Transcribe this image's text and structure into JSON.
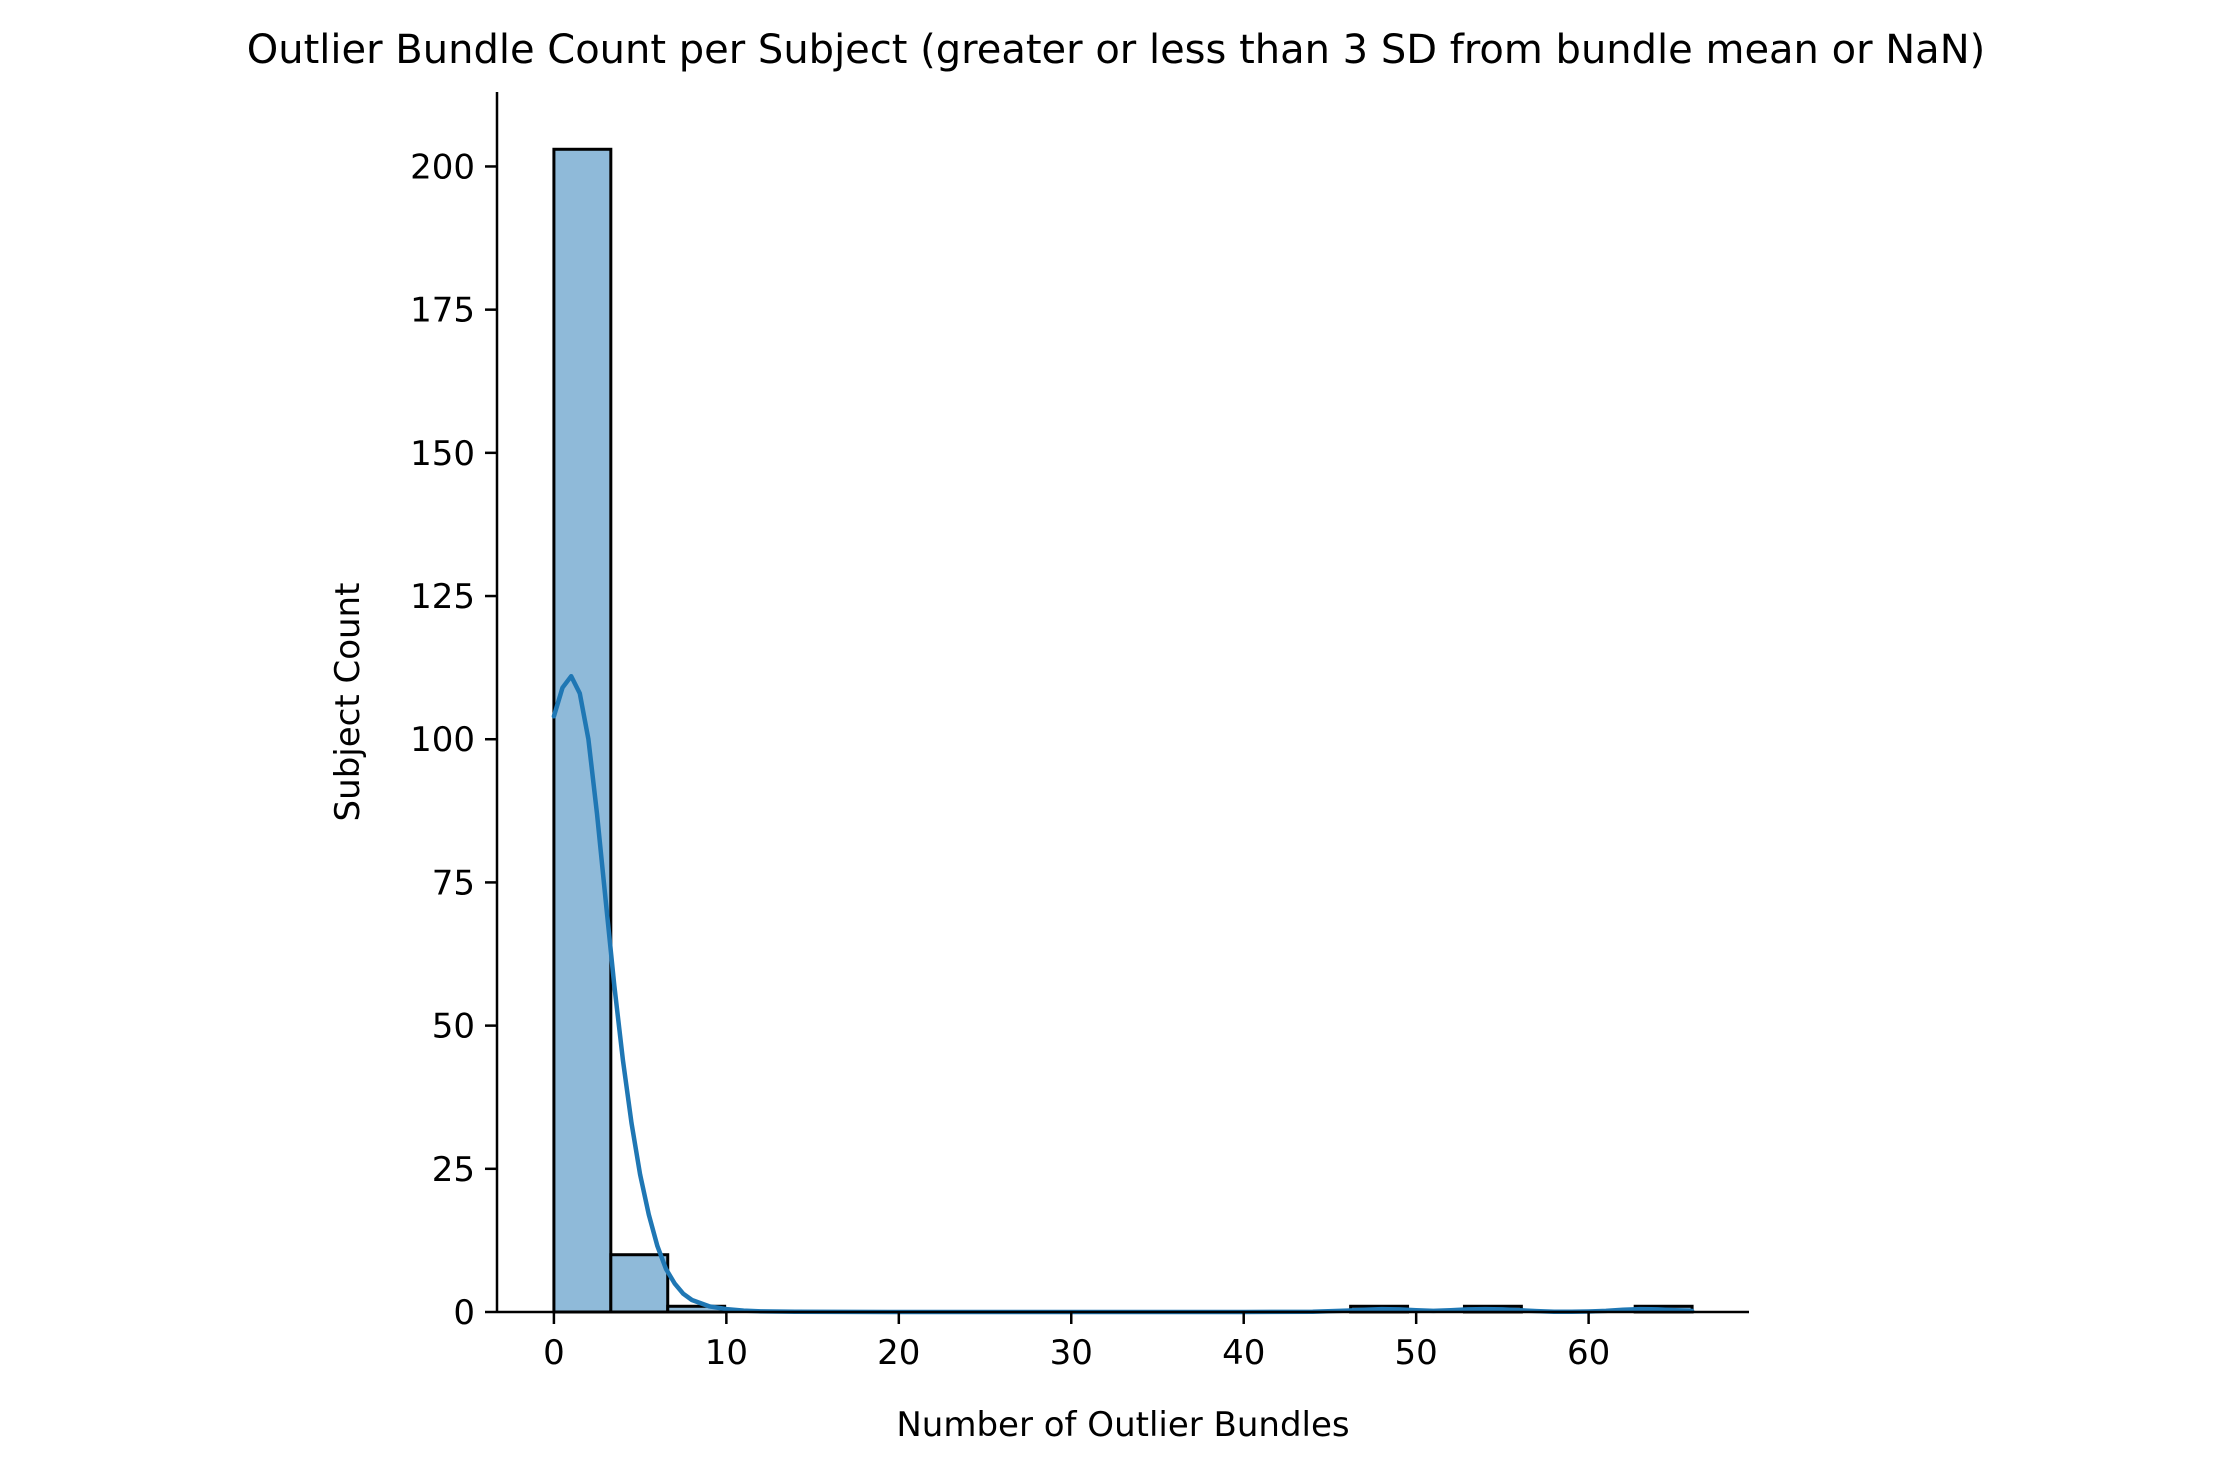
{
  "chart_data": {
    "type": "bar",
    "title": "Outlier Bundle Count per Subject (greater or less than 3 SD from bundle mean or NaN)",
    "xlabel": "Number of Outlier Bundles",
    "ylabel": "Subject Count",
    "xlim": [
      -3.3,
      69.3
    ],
    "ylim": [
      0,
      213
    ],
    "xticks": [
      0,
      10,
      20,
      30,
      40,
      50,
      60
    ],
    "xtick_labels": [
      "0",
      "10",
      "20",
      "30",
      "40",
      "50",
      "60"
    ],
    "yticks": [
      0,
      25,
      50,
      75,
      100,
      125,
      150,
      175,
      200
    ],
    "ytick_labels": [
      "0",
      "25",
      "50",
      "75",
      "100",
      "125",
      "150",
      "175",
      "200"
    ],
    "bins": [
      {
        "x0": 0.0,
        "x1": 3.3,
        "count": 203
      },
      {
        "x0": 3.3,
        "x1": 6.6,
        "count": 10
      },
      {
        "x0": 6.6,
        "x1": 9.9,
        "count": 1
      },
      {
        "x0": 9.9,
        "x1": 13.2,
        "count": 0
      },
      {
        "x0": 13.2,
        "x1": 16.5,
        "count": 0
      },
      {
        "x0": 16.5,
        "x1": 19.8,
        "count": 0
      },
      {
        "x0": 19.8,
        "x1": 23.1,
        "count": 0
      },
      {
        "x0": 23.1,
        "x1": 26.4,
        "count": 0
      },
      {
        "x0": 26.4,
        "x1": 29.7,
        "count": 0
      },
      {
        "x0": 29.7,
        "x1": 33.0,
        "count": 0
      },
      {
        "x0": 33.0,
        "x1": 36.3,
        "count": 0
      },
      {
        "x0": 36.3,
        "x1": 39.6,
        "count": 0
      },
      {
        "x0": 39.6,
        "x1": 42.9,
        "count": 0
      },
      {
        "x0": 42.9,
        "x1": 46.2,
        "count": 0
      },
      {
        "x0": 46.2,
        "x1": 49.5,
        "count": 1
      },
      {
        "x0": 49.5,
        "x1": 52.8,
        "count": 0
      },
      {
        "x0": 52.8,
        "x1": 56.1,
        "count": 1
      },
      {
        "x0": 56.1,
        "x1": 59.4,
        "count": 0
      },
      {
        "x0": 59.4,
        "x1": 62.7,
        "count": 0
      },
      {
        "x0": 62.7,
        "x1": 66.0,
        "count": 1
      }
    ],
    "kde": {
      "x": [
        0,
        0.5,
        1,
        1.5,
        2,
        2.5,
        3,
        3.5,
        4,
        4.5,
        5,
        5.5,
        6,
        6.5,
        7,
        7.5,
        8,
        9,
        10,
        11,
        12,
        14,
        20,
        30,
        40,
        44,
        46,
        47,
        48,
        49,
        50,
        51,
        52,
        53,
        54,
        55,
        56,
        57,
        58,
        59,
        60,
        61,
        62,
        63,
        64,
        65,
        66
      ],
      "y": [
        104,
        109,
        111,
        108,
        100,
        87,
        72,
        57,
        44,
        33,
        24,
        17,
        11.5,
        7.5,
        5,
        3.2,
        2.1,
        1.0,
        0.5,
        0.25,
        0.1,
        0.03,
        0,
        0,
        0,
        0.05,
        0.25,
        0.4,
        0.5,
        0.45,
        0.3,
        0.2,
        0.3,
        0.45,
        0.5,
        0.45,
        0.3,
        0.15,
        0.06,
        0.04,
        0.08,
        0.2,
        0.38,
        0.5,
        0.45,
        0.32,
        0.2
      ]
    },
    "bar_color": "#8fbad9",
    "edge_color": "#000000",
    "kde_color": "#1f77b4",
    "grid": false,
    "legend": "none"
  }
}
